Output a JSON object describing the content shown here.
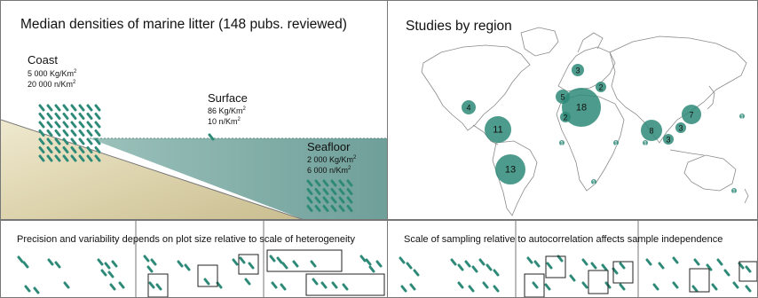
{
  "densities": {
    "title": "Median densities of marine litter (148 pubs. reviewed)",
    "coast": {
      "label": "Coast",
      "mass": "5 000 Kg/Km",
      "mass_sup": "2",
      "count": "20 000 n/Km",
      "count_sup": "2"
    },
    "surface": {
      "label": "Surface",
      "mass": "86 Kg/Km",
      "mass_sup": "2",
      "count": "10 n/Km",
      "count_sup": "2"
    },
    "seafloor": {
      "label": "Seafloor",
      "mass": "2 000 Kg/Km",
      "mass_sup": "2",
      "count": "6 000 n/Km",
      "count_sup": "2"
    }
  },
  "studies": {
    "title": "Studies by region",
    "regions": [
      {
        "count": "18"
      },
      {
        "count": "13"
      },
      {
        "count": "11"
      },
      {
        "count": "8"
      },
      {
        "count": "7"
      },
      {
        "count": "5"
      },
      {
        "count": "4"
      },
      {
        "count": "3"
      },
      {
        "count": "3"
      },
      {
        "count": "3"
      },
      {
        "count": "2"
      },
      {
        "count": "2"
      },
      {
        "count": "1"
      },
      {
        "count": "1"
      },
      {
        "count": "1"
      },
      {
        "count": "1"
      },
      {
        "count": "1"
      },
      {
        "count": "1"
      }
    ]
  },
  "bottom": {
    "left_caption": "Precision and variability depends on plot size relative to scale of heterogeneity",
    "right_caption": "Scale of sampling relative to autocorrelation affects sample independence"
  },
  "colors": {
    "teal": "#2e8a78",
    "sea": "#7fa9a4",
    "sand": "#d9cfa8"
  }
}
